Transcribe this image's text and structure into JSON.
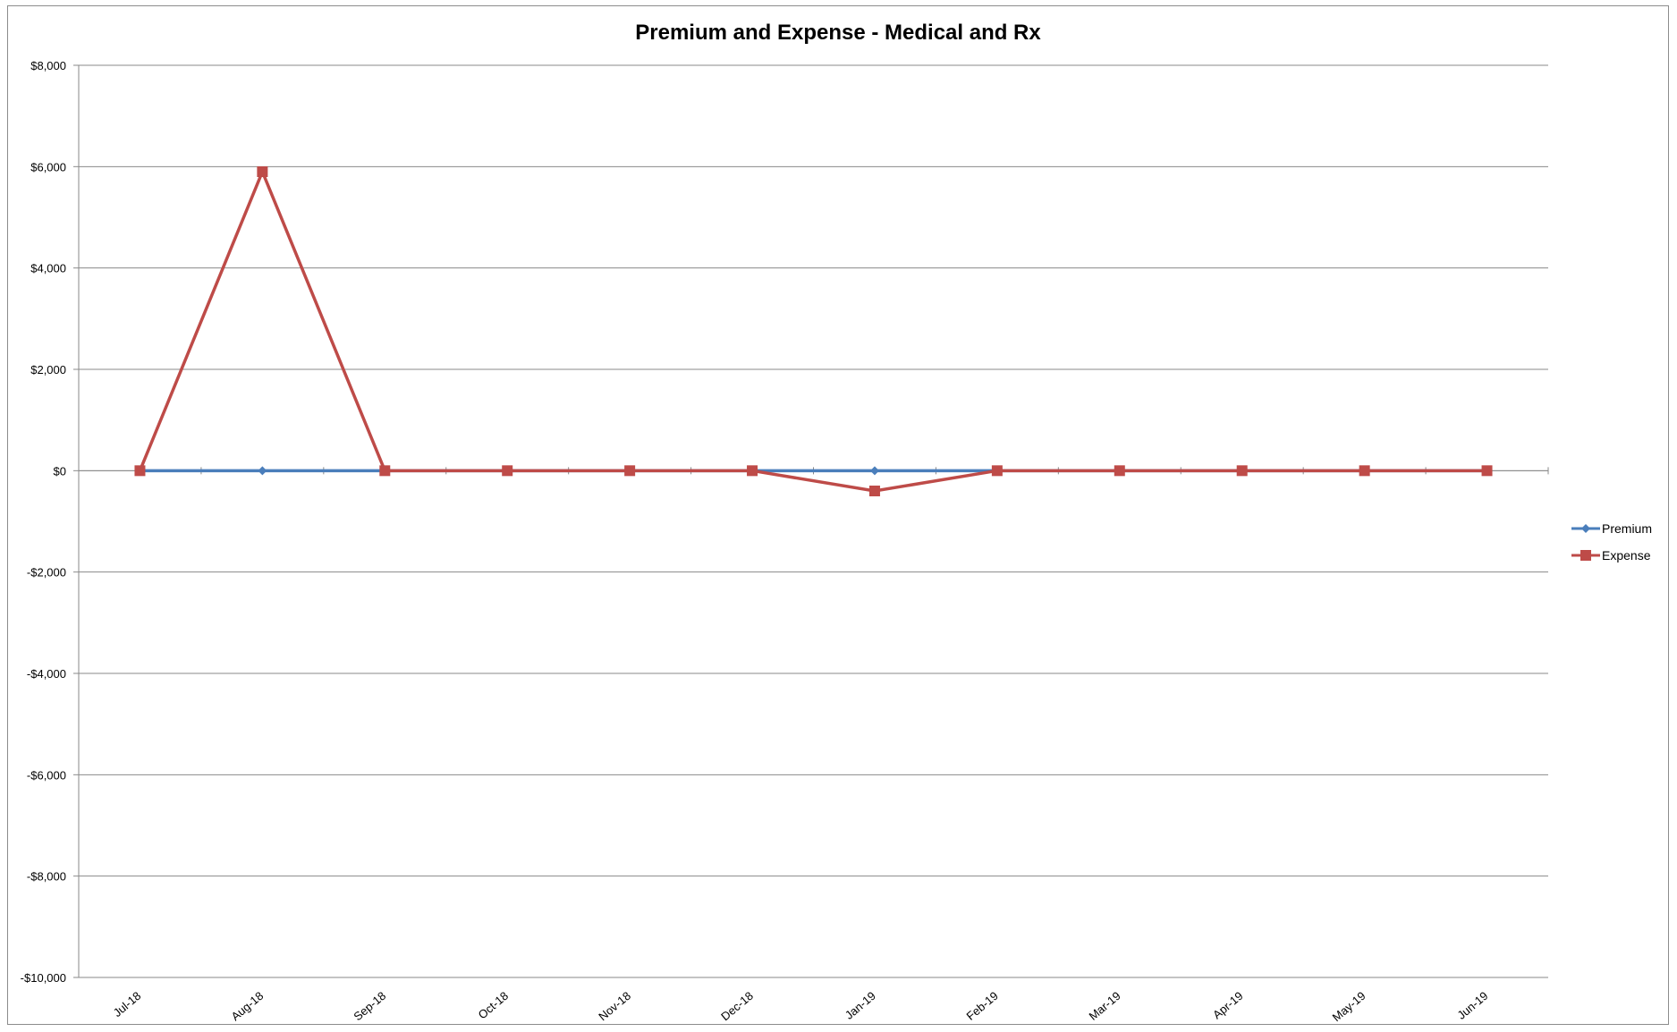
{
  "chart_data": {
    "type": "line",
    "title": "Premium and Expense - Medical and Rx",
    "xlabel": "",
    "ylabel": "",
    "categories": [
      "Jul-18",
      "Aug-18",
      "Sep-18",
      "Oct-18",
      "Nov-18",
      "Dec-18",
      "Jan-19",
      "Feb-19",
      "Mar-19",
      "Apr-19",
      "May-19",
      "Jun-19"
    ],
    "ylim": [
      -10000,
      8000
    ],
    "yticks": [
      8000,
      6000,
      4000,
      2000,
      0,
      -2000,
      -4000,
      -6000,
      -8000,
      -10000
    ],
    "ytick_labels": [
      "$8,000",
      "$6,000",
      "$4,000",
      "$2,000",
      "$0",
      "-$2,000",
      "-$4,000",
      "-$6,000",
      "-$8,000",
      "-$10,000"
    ],
    "grid": true,
    "legend_position": "right",
    "series": [
      {
        "name": "Premium",
        "color": "#4a7ebb",
        "marker": "diamond",
        "values": [
          0,
          0,
          0,
          0,
          0,
          0,
          0,
          0,
          0,
          0,
          0,
          0
        ]
      },
      {
        "name": "Expense",
        "color": "#be4b48",
        "marker": "square",
        "values": [
          0,
          5900,
          0,
          0,
          0,
          0,
          -400,
          0,
          0,
          0,
          0,
          0
        ]
      }
    ]
  }
}
